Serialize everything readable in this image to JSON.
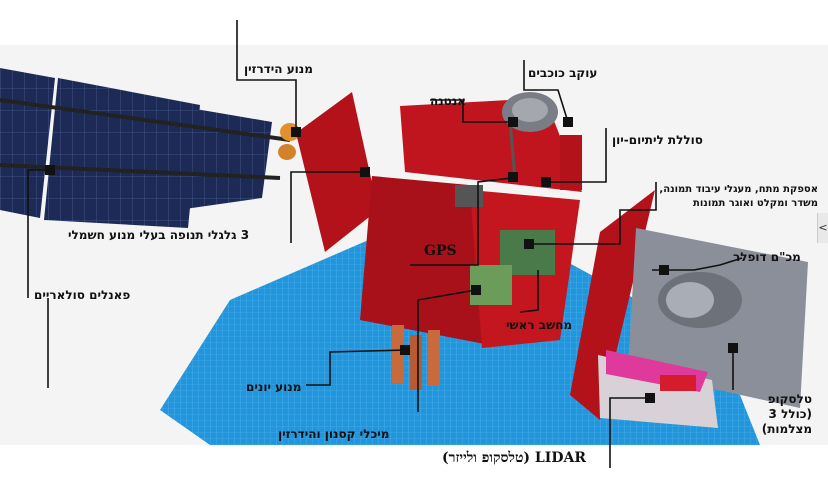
{
  "labels": {
    "hydrazine_engine": "מנוע הידרזין",
    "antenna": "אנטנה",
    "star_tracker": "עוקב כוכבים",
    "li_ion_battery": "סוללת ליתיום-יון",
    "power_supply": "אספקת מתח, מעגלי עיבוד תמונה, משדר ומקלט ואוגר תמונות",
    "reaction_wheels": "3 גלגלי תנופה בעלי מנוע חשמלי",
    "gps": "GPS",
    "doppler_radar": "מכ\"ם דופלר",
    "solar_panels": "פאנלים סולאריים",
    "main_computer": "מחשב ראשי",
    "ion_engine": "מנוע יונים",
    "telescope": "טלסקופ (כולל 3 מצלמות)",
    "xenon_hydrazine_tank": "מיכלי קסנון והידרזין",
    "lidar": "LIDAR (טלסקופ ולייזר)"
  },
  "side_tab": "<",
  "colors": {
    "panel_blue": "#1d2a55",
    "body_red": "#b3121b",
    "ground_blue": "#1b8fd6",
    "radar_gray": "#8a8f99",
    "lidar_pink": "#e0399c"
  }
}
